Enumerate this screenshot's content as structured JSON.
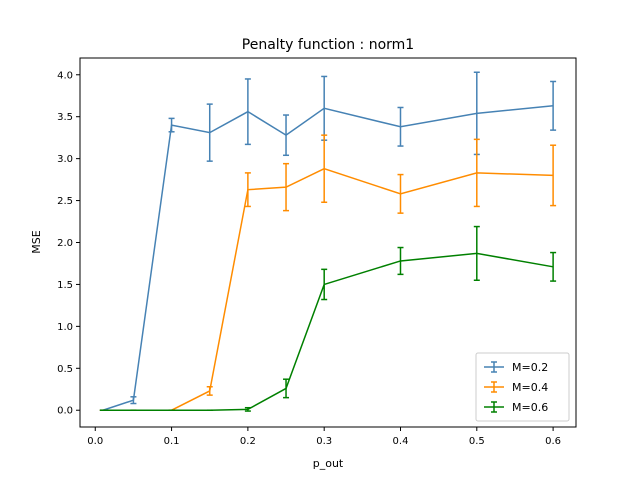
{
  "chart_data": {
    "type": "line",
    "title": "Penalty function : norm1",
    "xlabel": "p_out",
    "ylabel": "MSE",
    "xlim": [
      -0.02,
      0.63
    ],
    "ylim": [
      -0.2,
      4.2
    ],
    "xticks": [
      0.0,
      0.1,
      0.2,
      0.3,
      0.4,
      0.5,
      0.6
    ],
    "xtick_labels": [
      "0.0",
      "0.1",
      "0.2",
      "0.3",
      "0.4",
      "0.5",
      "0.6"
    ],
    "yticks": [
      0.0,
      0.5,
      1.0,
      1.5,
      2.0,
      2.5,
      3.0,
      3.5,
      4.0
    ],
    "ytick_labels": [
      "0.0",
      "0.5",
      "1.0",
      "1.5",
      "2.0",
      "2.5",
      "3.0",
      "3.5",
      "4.0"
    ],
    "grid": false,
    "legend_position": "lower-right",
    "x": [
      0.01,
      0.05,
      0.1,
      0.15,
      0.2,
      0.25,
      0.3,
      0.4,
      0.5,
      0.6
    ],
    "series": [
      {
        "name": "M=0.2",
        "color": "#4682b4",
        "values": [
          0.0,
          0.12,
          3.4,
          3.31,
          3.56,
          3.28,
          3.6,
          3.38,
          3.54,
          3.63
        ],
        "errors": [
          0.0,
          0.04,
          0.08,
          0.34,
          0.39,
          0.24,
          0.38,
          0.23,
          0.49,
          0.29
        ]
      },
      {
        "name": "M=0.4",
        "color": "#ff8c00",
        "values": [
          0.0,
          0.0,
          0.0,
          0.23,
          2.63,
          2.66,
          2.88,
          2.58,
          2.83,
          2.8
        ],
        "errors": [
          0.0,
          0.0,
          0.0,
          0.05,
          0.2,
          0.28,
          0.4,
          0.23,
          0.4,
          0.36
        ]
      },
      {
        "name": "M=0.6",
        "color": "#008000",
        "values": [
          0.0,
          0.0,
          0.0,
          0.0,
          0.01,
          0.26,
          1.5,
          1.78,
          1.87,
          1.71
        ],
        "errors": [
          0.0,
          0.0,
          0.0,
          0.0,
          0.02,
          0.11,
          0.18,
          0.16,
          0.32,
          0.17
        ]
      }
    ]
  }
}
